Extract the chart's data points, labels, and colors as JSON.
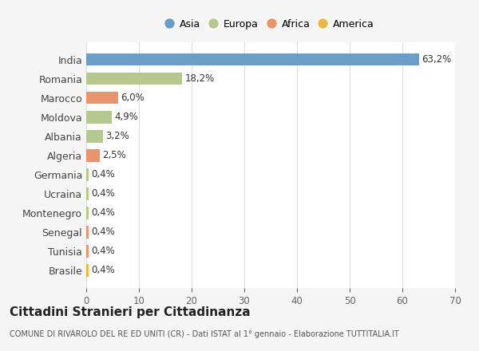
{
  "categories": [
    "India",
    "Romania",
    "Marocco",
    "Moldova",
    "Albania",
    "Algeria",
    "Germania",
    "Ucraina",
    "Montenegro",
    "Senegal",
    "Tunisia",
    "Brasile"
  ],
  "values": [
    63.2,
    18.2,
    6.0,
    4.9,
    3.2,
    2.5,
    0.4,
    0.4,
    0.4,
    0.4,
    0.4,
    0.4
  ],
  "labels": [
    "63,2%",
    "18,2%",
    "6,0%",
    "4,9%",
    "3,2%",
    "2,5%",
    "0,4%",
    "0,4%",
    "0,4%",
    "0,4%",
    "0,4%",
    "0,4%"
  ],
  "colors": [
    "#6a9dc8",
    "#b5c98e",
    "#e8956d",
    "#b5c98e",
    "#b5c98e",
    "#e8956d",
    "#b5c98e",
    "#b5c98e",
    "#b5c98e",
    "#e8956d",
    "#e8956d",
    "#e8b84b"
  ],
  "legend_labels": [
    "Asia",
    "Europa",
    "Africa",
    "America"
  ],
  "legend_colors": [
    "#6a9dc8",
    "#b5c98e",
    "#e8956d",
    "#e8b84b"
  ],
  "xlim": [
    0,
    70
  ],
  "xticks": [
    0,
    10,
    20,
    30,
    40,
    50,
    60,
    70
  ],
  "title": "Cittadini Stranieri per Cittadinanza",
  "subtitle": "COMUNE DI RIVAROLO DEL RE ED UNITI (CR) - Dati ISTAT al 1° gennaio - Elaborazione TUTTITALIA.IT",
  "background_color": "#f5f5f5",
  "bar_background": "#ffffff",
  "grid_color": "#dddddd"
}
